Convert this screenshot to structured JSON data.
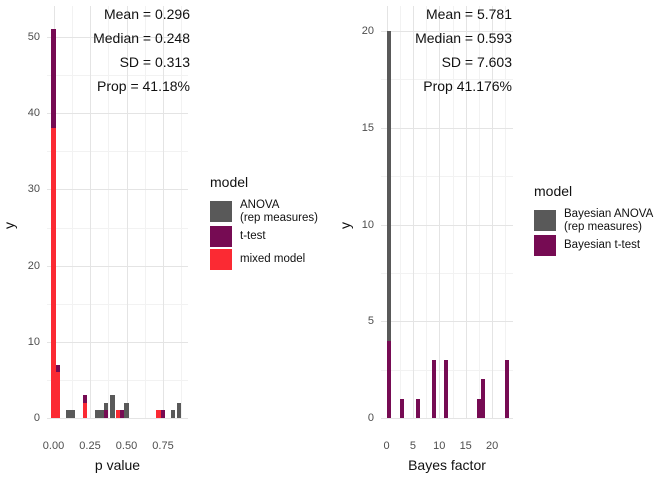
{
  "chart_data": [
    {
      "type": "bar",
      "title": "",
      "xlabel": "p value",
      "ylabel": "y",
      "xlim": [
        -0.045,
        0.925
      ],
      "ylim": [
        0,
        54
      ],
      "xticks": [
        0,
        0.25,
        0.5,
        0.75
      ],
      "xtick_labels": [
        "0.00",
        "0.25",
        "0.50",
        "0.75"
      ],
      "yticks": [
        0,
        10,
        20,
        30,
        40,
        50
      ],
      "grid": {
        "x_major": [
          0,
          0.25,
          0.5,
          0.75
        ],
        "x_minor": [
          0.125,
          0.375,
          0.625,
          0.875
        ],
        "y_major": [
          0,
          10,
          20,
          30,
          40,
          50
        ],
        "y_minor": [
          5,
          15,
          25,
          35,
          45
        ]
      },
      "annotations": [
        "Mean  =  0.296",
        "Median  =  0.248",
        "SD  =  0.313",
        "Prop = 41.18%"
      ],
      "legend": {
        "title": "model"
      },
      "series": [
        {
          "name": "ANOVA (rep measures)",
          "color": "#595959",
          "label_lines": [
            "ANOVA",
            "(rep measures)"
          ]
        },
        {
          "name": "t-test",
          "color": "#760B53",
          "label_lines": [
            "t-test"
          ]
        },
        {
          "name": "mixed model",
          "color": "#FB2A33",
          "label_lines": [
            "mixed model"
          ]
        }
      ],
      "bin_width": 0.03,
      "bars": [
        {
          "x": 0.0,
          "stack": [
            [
              2,
              38
            ],
            [
              1,
              13
            ]
          ]
        },
        {
          "x": 0.03,
          "stack": [
            [
              2,
              6
            ],
            [
              1,
              1
            ]
          ]
        },
        {
          "x": 0.1,
          "stack": [
            [
              0,
              1
            ]
          ]
        },
        {
          "x": 0.13,
          "stack": [
            [
              0,
              1
            ]
          ]
        },
        {
          "x": 0.215,
          "stack": [
            [
              2,
              2
            ],
            [
              1,
              1
            ]
          ]
        },
        {
          "x": 0.3,
          "stack": [
            [
              0,
              1
            ]
          ]
        },
        {
          "x": 0.33,
          "stack": [
            [
              0,
              1
            ]
          ]
        },
        {
          "x": 0.36,
          "stack": [
            [
              1,
              1
            ],
            [
              0,
              1
            ]
          ]
        },
        {
          "x": 0.405,
          "stack": [
            [
              0,
              3
            ]
          ]
        },
        {
          "x": 0.44,
          "stack": [
            [
              2,
              1
            ]
          ]
        },
        {
          "x": 0.47,
          "stack": [
            [
              1,
              1
            ]
          ]
        },
        {
          "x": 0.5,
          "stack": [
            [
              0,
              2
            ]
          ]
        },
        {
          "x": 0.72,
          "stack": [
            [
              2,
              1
            ]
          ]
        },
        {
          "x": 0.75,
          "stack": [
            [
              1,
              1
            ]
          ]
        },
        {
          "x": 0.82,
          "stack": [
            [
              0,
              1
            ]
          ]
        },
        {
          "x": 0.86,
          "stack": [
            [
              0,
              2
            ]
          ]
        }
      ]
    },
    {
      "type": "bar",
      "title": "",
      "xlabel": "Bayes factor",
      "ylabel": "y",
      "xlim": [
        -1.0,
        24.0
      ],
      "ylim": [
        0,
        21.3
      ],
      "xticks": [
        0,
        5,
        10,
        15,
        20
      ],
      "xtick_labels": [
        "0",
        "5",
        "10",
        "15",
        "20"
      ],
      "yticks": [
        0,
        5,
        10,
        15,
        20
      ],
      "grid": {
        "x_major": [
          0,
          5,
          10,
          15,
          20
        ],
        "x_minor": [
          2.5,
          7.5,
          12.5,
          17.5,
          22.5
        ],
        "y_major": [
          0,
          5,
          10,
          15,
          20
        ],
        "y_minor": [
          2.5,
          7.5,
          12.5,
          17.5
        ]
      },
      "annotations": [
        "Mean  =  5.781",
        "Median  =  0.593",
        "SD  =  7.603",
        "Prop 41.176%"
      ],
      "legend": {
        "title": "model"
      },
      "series": [
        {
          "name": "Bayesian ANOVA (rep measures)",
          "color": "#595959",
          "label_lines": [
            "Bayesian ANOVA",
            "(rep measures)"
          ]
        },
        {
          "name": "Bayesian t-test",
          "color": "#760B53",
          "label_lines": [
            "Bayesian t-test"
          ]
        }
      ],
      "bin_width": 0.75,
      "bars": [
        {
          "x": 0.4,
          "stack": [
            [
              1,
              4
            ],
            [
              0,
              16
            ]
          ]
        },
        {
          "x": 3.0,
          "stack": [
            [
              1,
              1
            ]
          ]
        },
        {
          "x": 5.9,
          "stack": [
            [
              1,
              1
            ]
          ]
        },
        {
          "x": 9.0,
          "stack": [
            [
              1,
              3
            ]
          ]
        },
        {
          "x": 11.2,
          "stack": [
            [
              1,
              3
            ]
          ]
        },
        {
          "x": 17.5,
          "stack": [
            [
              1,
              1
            ]
          ]
        },
        {
          "x": 18.3,
          "stack": [
            [
              1,
              2
            ]
          ]
        },
        {
          "x": 22.8,
          "stack": [
            [
              1,
              3
            ]
          ]
        }
      ]
    }
  ],
  "colors": {
    "grid_major": "#E4E4E4",
    "grid_minor": "#F2F2F2",
    "tick_text": "#4d4d4d"
  }
}
